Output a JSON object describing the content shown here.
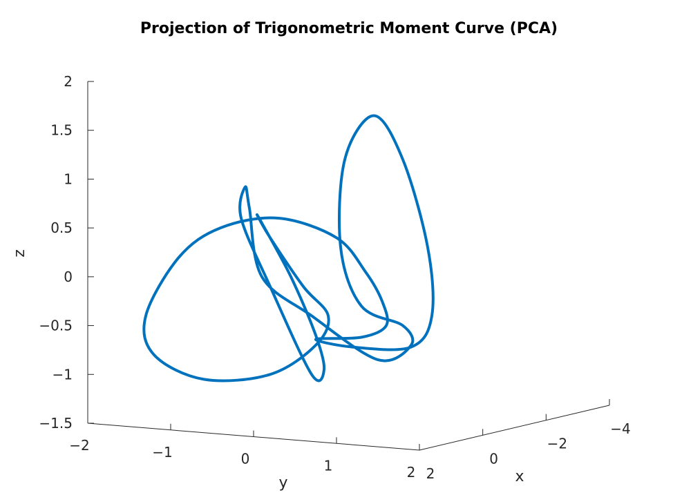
{
  "chart_data": {
    "type": "line",
    "title": "Projection of Trigonometric Moment Curve (PCA)",
    "xlabel": "x",
    "ylabel": "y",
    "zlabel": "z",
    "xlim": [
      -4,
      2
    ],
    "ylim": [
      -2,
      2
    ],
    "zlim": [
      -1.5,
      2
    ],
    "x_ticks": [
      "2",
      "0",
      "−2",
      "−4"
    ],
    "y_ticks": [
      "−2",
      "−1",
      "0",
      "1",
      "2"
    ],
    "z_ticks": [
      "2",
      "1.5",
      "1",
      "0.5",
      "0",
      "−0.5",
      "−1",
      "−1.5"
    ],
    "grid": false,
    "legend": "none",
    "series": [
      {
        "color": "#0072BD",
        "curve": "closed",
        "points_yz": [
          [
            0.75,
            -0.64
          ],
          [
            1.2,
            -0.72
          ],
          [
            1.9,
            -0.72
          ],
          [
            2.15,
            -0.4
          ],
          [
            2.1,
            0.3
          ],
          [
            1.8,
            1.2
          ],
          [
            1.45,
            1.65
          ],
          [
            1.1,
            1.2
          ],
          [
            1.05,
            0.3
          ],
          [
            1.3,
            -0.3
          ],
          [
            1.8,
            -0.5
          ],
          [
            1.9,
            -0.7
          ],
          [
            1.5,
            -0.85
          ],
          [
            0.7,
            -0.4
          ],
          [
            0.1,
            0.0
          ],
          [
            -0.05,
            0.7
          ],
          [
            -0.1,
            0.92
          ],
          [
            -0.15,
            0.6
          ],
          [
            0.2,
            -0.1
          ],
          [
            0.7,
            -1.0
          ],
          [
            0.85,
            -0.95
          ],
          [
            0.75,
            -0.6
          ],
          [
            0.45,
            0.0
          ],
          [
            0.1,
            0.55
          ],
          [
            0.05,
            0.62
          ],
          [
            0.2,
            0.4
          ],
          [
            0.6,
            -0.1
          ],
          [
            0.9,
            -0.4
          ],
          [
            0.75,
            -0.7
          ],
          [
            0.2,
            -1.0
          ],
          [
            -0.6,
            -1.05
          ],
          [
            -1.2,
            -0.8
          ],
          [
            -1.3,
            -0.4
          ],
          [
            -0.9,
            0.2
          ],
          [
            -0.4,
            0.5
          ],
          [
            0.3,
            0.6
          ],
          [
            1.0,
            0.4
          ],
          [
            1.35,
            0.05
          ],
          [
            1.55,
            -0.25
          ],
          [
            1.6,
            -0.5
          ],
          [
            1.3,
            -0.62
          ]
        ]
      }
    ]
  }
}
